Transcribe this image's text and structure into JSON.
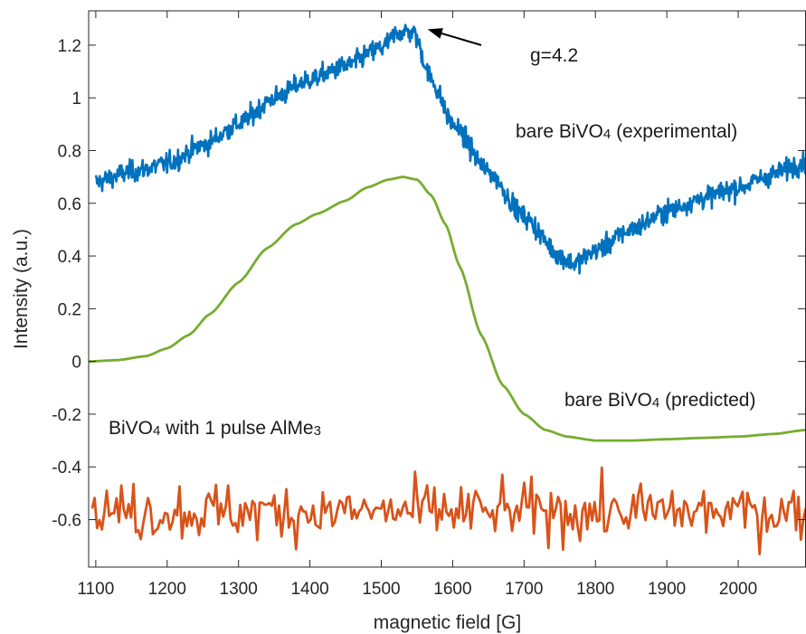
{
  "chart_data": {
    "type": "line",
    "xlabel": "magnetic field [G]",
    "ylabel": "Intensity (a.u.)",
    "xlim": [
      1090,
      2095
    ],
    "ylim": [
      -0.78,
      1.33
    ],
    "x_ticks": [
      "1100",
      "1200",
      "1300",
      "1400",
      "1500",
      "1600",
      "1700",
      "1800",
      "1900",
      "2000"
    ],
    "y_ticks": [
      "-0.6",
      "-0.4",
      "-0.2",
      "0",
      "0.2",
      "0.4",
      "0.6",
      "0.8",
      "1",
      "1.2"
    ],
    "grid": false,
    "series": [
      {
        "name": "bare BiVO4 (experimental)",
        "color": "#0072BD",
        "noise": 0.028,
        "x": [
          1100,
          1150,
          1200,
          1250,
          1300,
          1350,
          1400,
          1450,
          1500,
          1525,
          1545,
          1570,
          1600,
          1650,
          1700,
          1750,
          1770,
          1800,
          1850,
          1900,
          1950,
          2000,
          2050,
          2095
        ],
        "y": [
          0.68,
          0.72,
          0.75,
          0.82,
          0.9,
          1.0,
          1.07,
          1.12,
          1.19,
          1.25,
          1.25,
          1.07,
          0.9,
          0.72,
          0.55,
          0.4,
          0.37,
          0.42,
          0.5,
          0.57,
          0.62,
          0.66,
          0.71,
          0.76
        ]
      },
      {
        "name": "bare BiVO4 (predicted)",
        "color": "#77AC30",
        "noise": 0,
        "x": [
          1090,
          1130,
          1170,
          1200,
          1230,
          1260,
          1300,
          1340,
          1380,
          1410,
          1450,
          1480,
          1510,
          1530,
          1550,
          1570,
          1590,
          1610,
          1640,
          1670,
          1700,
          1730,
          1760,
          1800,
          1850,
          1900,
          1950,
          2000,
          2050,
          2095
        ],
        "y": [
          0.0,
          0.005,
          0.02,
          0.05,
          0.1,
          0.18,
          0.3,
          0.43,
          0.52,
          0.56,
          0.61,
          0.66,
          0.69,
          0.7,
          0.69,
          0.63,
          0.52,
          0.36,
          0.1,
          -0.09,
          -0.2,
          -0.26,
          -0.285,
          -0.3,
          -0.3,
          -0.295,
          -0.29,
          -0.285,
          -0.275,
          -0.26
        ]
      },
      {
        "name": "BiVO4 with 1 pulse AlMe3",
        "color": "#D95319",
        "noise": 0.075,
        "x": [
          1095,
          1300,
          1500,
          1700,
          1900,
          2095
        ],
        "y": [
          -0.57,
          -0.57,
          -0.57,
          -0.57,
          -0.57,
          -0.57
        ]
      }
    ],
    "annotations": [
      {
        "text": "g=4.2",
        "arrow_from": [
          1640,
          1.2
        ],
        "arrow_to": [
          1565,
          1.26
        ]
      },
      {
        "base": "bare BiVO",
        "sub": "4",
        "tail": " (experimental)"
      },
      {
        "base": "bare BiVO",
        "sub": "4",
        "tail": " (predicted)"
      },
      {
        "base": "BiVO",
        "sub": "4",
        "tail": " with 1 pulse AlMe",
        "sub2": "3"
      }
    ]
  }
}
